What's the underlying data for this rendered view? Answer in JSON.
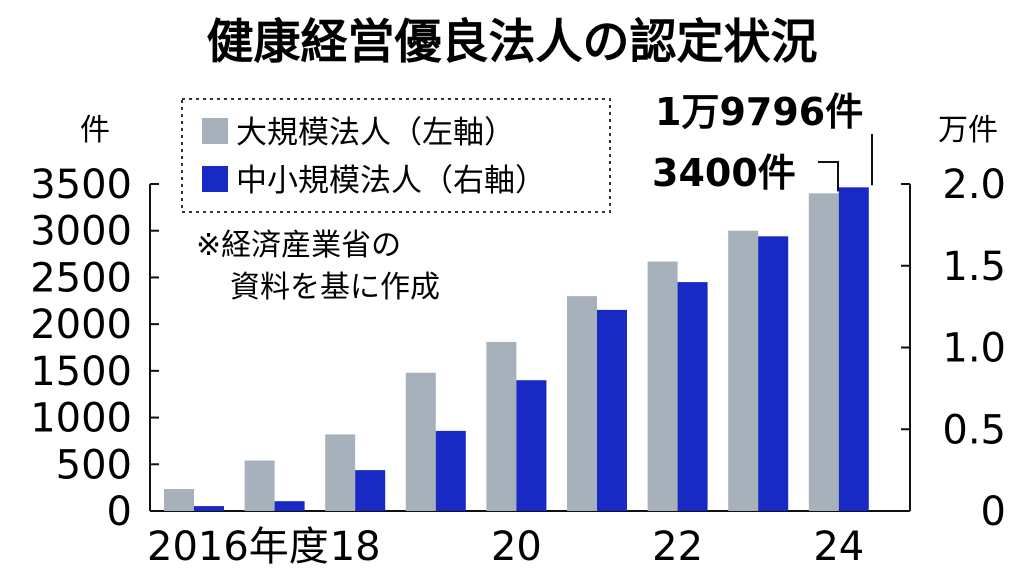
{
  "chart_data": {
    "type": "bar",
    "title": "健康経営優良法人の認定状況",
    "y_left_unit": "件",
    "y_right_unit": "万件",
    "y_left_ticks": [
      "0",
      "500",
      "1000",
      "1500",
      "2000",
      "2500",
      "3000",
      "3500"
    ],
    "y_right_ticks": [
      "0",
      "0.5",
      "1.0",
      "1.5",
      "2.0"
    ],
    "ylim_left": [
      0,
      3500
    ],
    "ylim_right": [
      0,
      2.0
    ],
    "x_tick_labels": [
      "2016年度",
      "18",
      "20",
      "22",
      "24"
    ],
    "categories": [
      "2016",
      "2017",
      "2018",
      "2019",
      "2020",
      "2021",
      "2022",
      "2023",
      "2024"
    ],
    "series": [
      {
        "name": "大規模法人（左軸）",
        "axis": "left",
        "color": "#a7b1bb",
        "values": [
          235,
          540,
          820,
          1480,
          1810,
          2300,
          2670,
          3000,
          3400
        ]
      },
      {
        "name": "中小規模法人（右軸）",
        "axis": "right",
        "color": "#1829c4",
        "values": [
          0.03,
          0.06,
          0.25,
          0.49,
          0.8,
          1.23,
          1.4,
          1.68,
          1.9796
        ]
      }
    ],
    "annotations": {
      "large_last": "3400件",
      "small_last": "1万9796件"
    },
    "note_lines": [
      "※経済産業省の",
      "資料を基に作成"
    ],
    "grid": false,
    "legend_position": "top-left"
  }
}
